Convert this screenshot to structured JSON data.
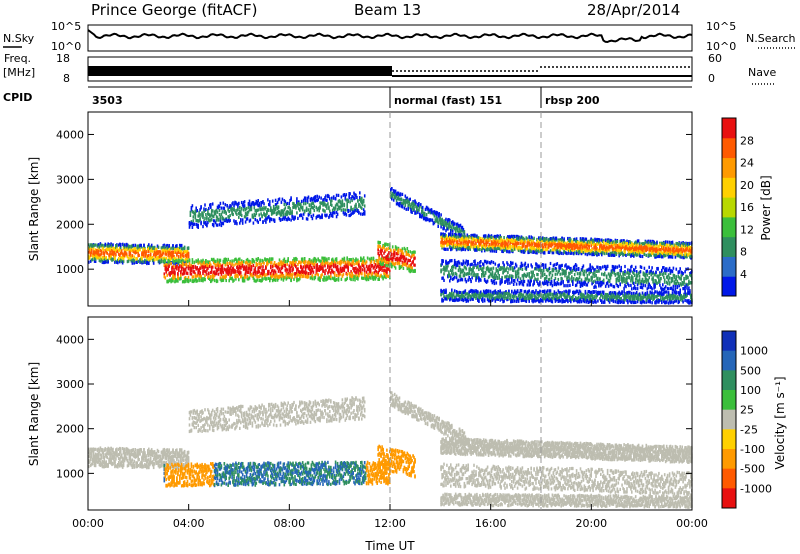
{
  "header": {
    "title": "Prince George (fitACF)",
    "beam": "Beam 13",
    "date": "28/Apr/2014"
  },
  "noise_panel": {
    "left_label": "N.Sky",
    "right_label": "N.Search",
    "y_top_tick": "10^5",
    "y_bottom_tick": "10^0",
    "right_top_tick": "10^5",
    "right_bottom_tick": "10^0"
  },
  "freq_panel": {
    "left_label_1": "Freq.",
    "left_label_2": "[MHz]",
    "left_top_tick": "18",
    "left_bottom_tick": "8",
    "right_label": "Nave",
    "right_top_tick": "60",
    "right_bottom_tick": "0"
  },
  "cpid_panel": {
    "label": "CPID",
    "segments": [
      {
        "label": "3503",
        "start_hour": 0
      },
      {
        "label": "normal (fast) 151",
        "start_hour": 12
      },
      {
        "label": "rbsp 200",
        "start_hour": 18
      }
    ]
  },
  "x_axis": {
    "label": "Time UT",
    "ticks": [
      "00:00",
      "04:00",
      "08:00",
      "12:00",
      "16:00",
      "20:00",
      "00:00"
    ],
    "range_hours": [
      0,
      24
    ]
  },
  "colors": {
    "power": [
      "#0018e8",
      "#2b6cc8",
      "#2f8f5f",
      "#3bbf3b",
      "#b8d800",
      "#ffd000",
      "#ff9a00",
      "#ff5a00",
      "#e81010"
    ],
    "velocity": [
      "#1030b8",
      "#2566b8",
      "#2f8f5f",
      "#3bbf3b",
      "#bdbdb0",
      "#ffd000",
      "#ff9a00",
      "#ff5a00",
      "#e81010"
    ]
  },
  "chart_data": [
    {
      "type": "heatmap",
      "ylabel": "Slant Range [km]",
      "xlabel": "",
      "ylim": [
        180,
        4500
      ],
      "y_ticks": [
        "1000",
        "2000",
        "3000",
        "4000"
      ],
      "colorbar": {
        "label": "Power [dB]",
        "ticks": [
          "4",
          "8",
          "12",
          "16",
          "20",
          "24",
          "28"
        ],
        "range": [
          0,
          30
        ]
      }
    },
    {
      "type": "heatmap",
      "ylabel": "Slant Range [km]",
      "xlabel": "Time UT",
      "ylim": [
        180,
        4500
      ],
      "y_ticks": [
        "1000",
        "2000",
        "3000",
        "4000"
      ],
      "colorbar": {
        "label": "Velocity [m s⁻¹]",
        "ticks": [
          "1000",
          "500",
          "100",
          "25",
          "-25",
          "-100",
          "-500",
          "-1000"
        ]
      }
    }
  ]
}
